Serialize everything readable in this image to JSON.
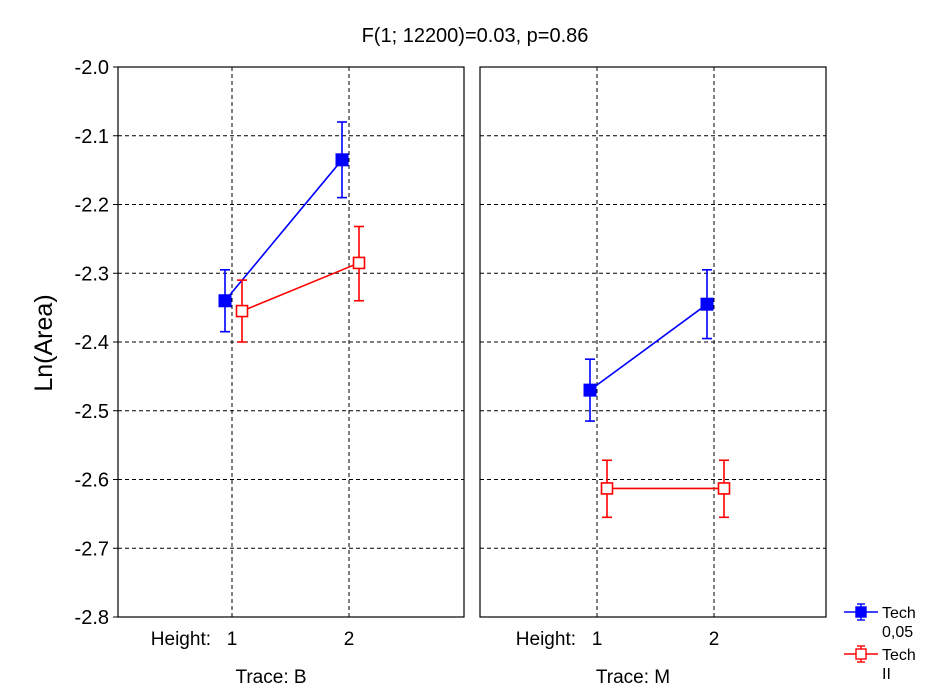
{
  "chart_data": {
    "type": "line",
    "title": "F(1; 12200)=0.03, p=0.86",
    "ylabel": "Ln(Area)",
    "ylim": [
      -2.8,
      -2.0
    ],
    "yticks": [
      "-2.0",
      "-2.1",
      "-2.2",
      "-2.3",
      "-2.4",
      "-2.5",
      "-2.6",
      "-2.7",
      "-2.8"
    ],
    "x_factor_label": "Height:",
    "categories": [
      "1",
      "2"
    ],
    "grid": true,
    "legend_position": "bottom-right",
    "series_meta": [
      {
        "name": "Tech 0,05",
        "color": "#0000ff",
        "marker": "filled-square"
      },
      {
        "name": "Tech II",
        "color": "#ff0000",
        "marker": "open-square"
      }
    ],
    "panels": [
      {
        "label": "Trace: B",
        "series": [
          {
            "name": "Tech 0,05",
            "values": [
              -2.34,
              -2.135
            ],
            "err_low": [
              -2.385,
              -2.19
            ],
            "err_high": [
              -2.295,
              -2.08
            ]
          },
          {
            "name": "Tech II",
            "values": [
              -2.355,
              -2.285
            ],
            "err_low": [
              -2.4,
              -2.34
            ],
            "err_high": [
              -2.31,
              -2.232
            ]
          }
        ]
      },
      {
        "label": "Trace: M",
        "series": [
          {
            "name": "Tech 0,05",
            "values": [
              -2.47,
              -2.345
            ],
            "err_low": [
              -2.515,
              -2.395
            ],
            "err_high": [
              -2.425,
              -2.295
            ]
          },
          {
            "name": "Tech II",
            "values": [
              -2.613,
              -2.613
            ],
            "err_low": [
              -2.655,
              -2.655
            ],
            "err_high": [
              -2.572,
              -2.572
            ]
          }
        ]
      }
    ],
    "legend": [
      {
        "line1": "Tech",
        "line2": "0,05"
      },
      {
        "line1": "Tech",
        "line2": "II"
      }
    ]
  }
}
